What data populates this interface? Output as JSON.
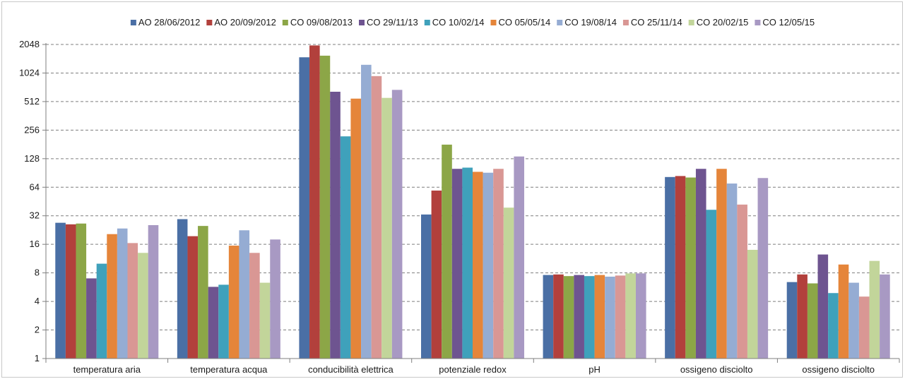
{
  "chart_data": {
    "type": "bar",
    "title": "",
    "xlabel": "",
    "ylabel": "",
    "y_scale": "log2",
    "ylim": [
      1,
      2048
    ],
    "y_ticks": [
      1,
      2,
      4,
      8,
      16,
      32,
      64,
      128,
      256,
      512,
      1024,
      2048
    ],
    "grid": "horizontal dashed",
    "legend_position": "top",
    "categories": [
      "temperatura aria",
      "temperatura acqua",
      "conducibilità elettrica",
      "potenziale redox",
      "pH",
      "ossigeno disciolto",
      "ossigeno disciolto"
    ],
    "series": [
      {
        "name": "AO 28/06/2012",
        "color": "#4a6fa5",
        "values": [
          27,
          29.5,
          1500,
          33,
          7.6,
          82,
          6.4
        ]
      },
      {
        "name": "AO 20/09/2012",
        "color": "#b2403c",
        "values": [
          26,
          19.5,
          2000,
          59,
          7.7,
          84,
          7.7
        ]
      },
      {
        "name": "CO 09/08/2013",
        "color": "#8ca647",
        "values": [
          26.5,
          25,
          1560,
          180,
          7.4,
          81,
          6.2
        ]
      },
      {
        "name": "CO 29/11/13",
        "color": "#6e5490",
        "values": [
          7,
          5.7,
          650,
          100,
          7.6,
          100,
          12.5
        ]
      },
      {
        "name": "CO 10/02/14",
        "color": "#3fa1bb",
        "values": [
          10,
          6,
          220,
          103,
          7.4,
          37,
          4.9
        ]
      },
      {
        "name": "CO 05/05/14",
        "color": "#e5853a",
        "values": [
          20.5,
          15.5,
          550,
          93,
          7.6,
          100,
          9.8
        ]
      },
      {
        "name": "CO 19/08/14",
        "color": "#95acd3",
        "values": [
          23.5,
          22.5,
          1250,
          91,
          7.3,
          70,
          6.3
        ]
      },
      {
        "name": "CO 25/11/14",
        "color": "#d99794",
        "values": [
          16.5,
          13,
          950,
          100,
          7.5,
          42,
          4.5
        ]
      },
      {
        "name": "CO 20/02/15",
        "color": "#c2d59a",
        "values": [
          13,
          6.3,
          560,
          39,
          7.9,
          14,
          10.7
        ]
      },
      {
        "name": "CO 12/05/15",
        "color": "#a899c3",
        "values": [
          25.5,
          18,
          680,
          135,
          7.9,
          80,
          7.7
        ]
      }
    ]
  }
}
